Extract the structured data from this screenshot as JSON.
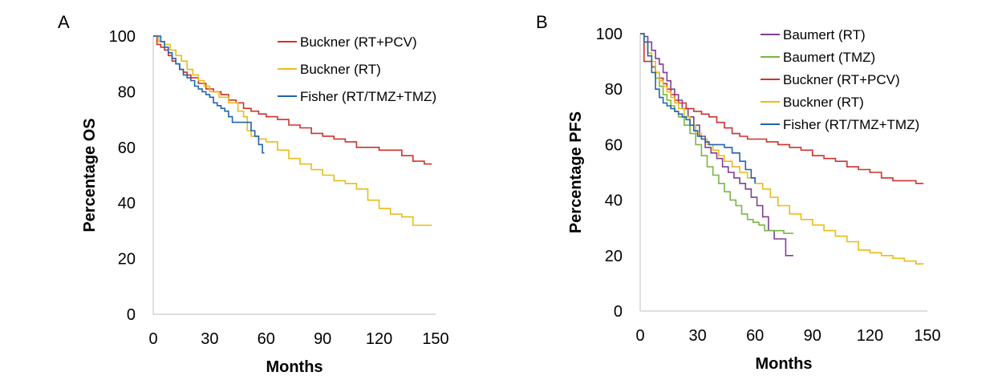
{
  "chart_data": [
    {
      "type": "line",
      "panel_label": "A",
      "title": "",
      "xlabel": "Months",
      "ylabel": "Percentage OS",
      "xlim": [
        0,
        150
      ],
      "ylim": [
        0,
        100
      ],
      "xticks": [
        "0",
        "30",
        "60",
        "90",
        "120",
        "150"
      ],
      "yticks": [
        "0",
        "20",
        "40",
        "60",
        "80",
        "100"
      ],
      "grid": false,
      "legend_position": "top-right",
      "series": [
        {
          "name": "Buckner (RT+PCV)",
          "color": "#d0312d",
          "step": true,
          "x": [
            0,
            2,
            4,
            6,
            8,
            10,
            12,
            14,
            16,
            18,
            20,
            24,
            28,
            32,
            36,
            40,
            44,
            48,
            52,
            56,
            60,
            66,
            72,
            78,
            84,
            90,
            96,
            102,
            108,
            114,
            120,
            126,
            132,
            138,
            144,
            148
          ],
          "y": [
            100,
            97,
            96,
            95,
            93,
            91,
            90,
            88,
            87,
            86,
            85,
            83,
            81,
            80,
            79,
            77,
            76,
            74,
            73,
            72,
            71,
            70,
            68,
            67,
            65,
            64,
            63,
            62,
            60,
            60,
            59,
            59,
            57,
            55,
            54,
            54
          ]
        },
        {
          "name": "Buckner (RT)",
          "color": "#e9bc18",
          "step": true,
          "x": [
            0,
            3,
            6,
            9,
            12,
            15,
            18,
            21,
            24,
            27,
            30,
            35,
            40,
            45,
            48,
            50,
            52,
            56,
            60,
            66,
            72,
            78,
            84,
            90,
            96,
            102,
            108,
            114,
            120,
            126,
            132,
            138,
            144,
            148
          ],
          "y": [
            100,
            98,
            97,
            95,
            93,
            91,
            88,
            86,
            84,
            82,
            80,
            78,
            76,
            73,
            71,
            66,
            64,
            63,
            62,
            59,
            56,
            54,
            52,
            50,
            48,
            47,
            45,
            41,
            38,
            36,
            35,
            32,
            32,
            32
          ]
        },
        {
          "name": "Fisher (RT/TMZ+TMZ)",
          "color": "#1f64ae",
          "step": true,
          "x": [
            0,
            2,
            4,
            6,
            8,
            10,
            12,
            14,
            16,
            18,
            20,
            22,
            24,
            26,
            28,
            30,
            32,
            34,
            36,
            38,
            40,
            42,
            46,
            50,
            52,
            54,
            56,
            58,
            59
          ],
          "y": [
            100,
            100,
            98,
            96,
            94,
            92,
            90,
            88,
            86,
            85,
            84,
            82,
            81,
            80,
            79,
            78,
            76,
            75,
            74,
            73,
            71,
            69,
            69,
            69,
            66,
            64,
            61,
            58,
            58
          ]
        }
      ]
    },
    {
      "type": "line",
      "panel_label": "B",
      "title": "",
      "xlabel": "Months",
      "ylabel": "Percentage PFS",
      "xlim": [
        0,
        150
      ],
      "ylim": [
        0,
        100
      ],
      "xticks": [
        "0",
        "30",
        "60",
        "90",
        "120",
        "150"
      ],
      "yticks": [
        "0",
        "20",
        "40",
        "60",
        "80",
        "100"
      ],
      "grid": false,
      "legend_position": "top-right",
      "series": [
        {
          "name": "Baumert (RT)",
          "color": "#7e3f98",
          "step": true,
          "x": [
            0,
            2,
            4,
            6,
            8,
            10,
            12,
            14,
            16,
            18,
            20,
            22,
            25,
            28,
            31,
            34,
            37,
            40,
            43,
            46,
            49,
            52,
            55,
            58,
            61,
            64,
            67,
            70,
            73,
            76,
            80
          ],
          "y": [
            100,
            99,
            97,
            94,
            91,
            89,
            86,
            83,
            80,
            78,
            76,
            73,
            70,
            67,
            63,
            59,
            57,
            55,
            52,
            50,
            48,
            46,
            44,
            41,
            38,
            34,
            29,
            26,
            26,
            20,
            20
          ]
        },
        {
          "name": "Baumert (TMZ)",
          "color": "#79b642",
          "step": true,
          "x": [
            0,
            2,
            4,
            6,
            8,
            10,
            12,
            14,
            16,
            18,
            20,
            23,
            26,
            29,
            32,
            35,
            38,
            41,
            44,
            47,
            50,
            53,
            56,
            59,
            62,
            65,
            70,
            75,
            80
          ],
          "y": [
            100,
            97,
            93,
            88,
            84,
            81,
            78,
            76,
            74,
            72,
            70,
            67,
            64,
            60,
            56,
            52,
            49,
            46,
            43,
            40,
            38,
            35,
            33,
            32,
            31,
            29,
            29,
            28,
            28
          ]
        },
        {
          "name": "Buckner (RT+PCV)",
          "color": "#d0312d",
          "step": true,
          "x": [
            0,
            2,
            4,
            6,
            8,
            10,
            12,
            14,
            16,
            18,
            20,
            24,
            28,
            32,
            36,
            40,
            44,
            48,
            52,
            56,
            60,
            66,
            72,
            78,
            84,
            90,
            96,
            102,
            108,
            114,
            120,
            126,
            132,
            138,
            144,
            148
          ],
          "y": [
            100,
            90,
            90,
            88,
            86,
            84,
            82,
            80,
            78,
            76,
            75,
            73,
            72,
            71,
            70,
            68,
            66,
            64,
            63,
            62,
            62,
            61,
            60,
            59,
            58,
            56,
            55,
            54,
            52,
            51,
            50,
            48,
            47,
            47,
            46,
            46
          ]
        },
        {
          "name": "Buckner (RT)",
          "color": "#e9bc18",
          "step": true,
          "x": [
            0,
            2,
            4,
            6,
            8,
            10,
            12,
            14,
            16,
            18,
            20,
            23,
            26,
            29,
            32,
            35,
            38,
            41,
            44,
            48,
            52,
            56,
            60,
            64,
            68,
            72,
            78,
            84,
            90,
            96,
            102,
            108,
            114,
            120,
            126,
            132,
            138,
            144,
            148
          ],
          "y": [
            100,
            97,
            93,
            90,
            86,
            83,
            81,
            79,
            77,
            75,
            73,
            70,
            67,
            64,
            62,
            60,
            58,
            56,
            54,
            52,
            50,
            48,
            46,
            44,
            41,
            38,
            35,
            33,
            31,
            29,
            27,
            25,
            22,
            21,
            20,
            19,
            18,
            17,
            17
          ]
        },
        {
          "name": "Fisher (RT/TMZ+TMZ)",
          "color": "#1f64ae",
          "step": true,
          "x": [
            0,
            2,
            4,
            6,
            8,
            10,
            12,
            14,
            16,
            18,
            20,
            22,
            24,
            26,
            28,
            30,
            32,
            34,
            36,
            38,
            40,
            44,
            48,
            52,
            55,
            58,
            60
          ],
          "y": [
            100,
            97,
            92,
            86,
            80,
            77,
            75,
            74,
            73,
            72,
            71,
            70,
            69,
            67,
            65,
            63,
            62,
            61,
            60,
            60,
            60,
            59,
            57,
            54,
            51,
            48,
            46
          ]
        }
      ]
    }
  ]
}
